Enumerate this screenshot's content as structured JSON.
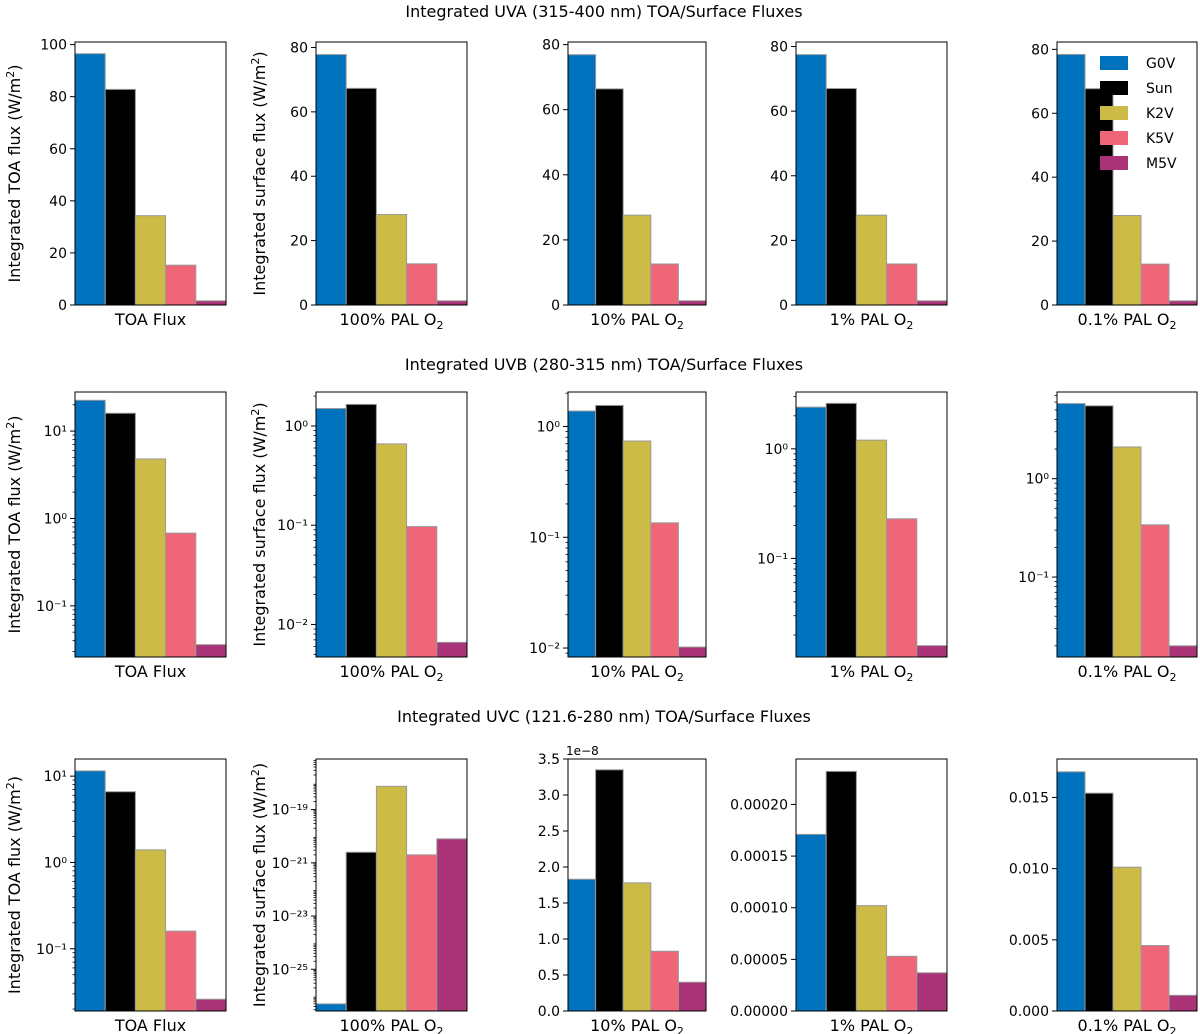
{
  "figure": {
    "row_titles": [
      "Integrated UVA (315-400 nm) TOA/Surface Fluxes",
      "Integrated UVB (280-315 nm) TOA/Surface Fluxes",
      "Integrated UVC (121.6-280 nm) TOA/Surface Fluxes"
    ]
  },
  "legend": {
    "placement": "top-right",
    "entries": [
      {
        "name": "G0V",
        "color": "#0072BD"
      },
      {
        "name": "Sun",
        "color": "#000000"
      },
      {
        "name": "K2V",
        "color": "#CDBB48"
      },
      {
        "name": "K5V",
        "color": "#EE6677"
      },
      {
        "name": "M5V",
        "color": "#AA3377"
      }
    ]
  },
  "chart_data": [
    {
      "type": "bar",
      "title": "Integrated UVA (315-400 nm) TOA/Surface Fluxes",
      "xlabel": "TOA Flux",
      "ylabel": "Integrated TOA flux (W/m²)",
      "categories": [
        "G0V",
        "Sun",
        "K2V",
        "K5V",
        "M5V"
      ],
      "values": [
        96.5,
        82.8,
        34.3,
        15.3,
        1.6
      ],
      "yscale": "linear",
      "ylim": [
        0,
        101
      ],
      "ticks": [
        0,
        20,
        40,
        60,
        80,
        100
      ],
      "tick_labels": [
        "0",
        "20",
        "40",
        "60",
        "80",
        "100"
      ]
    },
    {
      "type": "bar",
      "xlabel": "100% PAL O₂",
      "ylabel": "Integrated surface flux (W/m²)",
      "categories": [
        "G0V",
        "Sun",
        "K2V",
        "K5V",
        "M5V"
      ],
      "values": [
        77.8,
        67.3,
        28.1,
        12.8,
        1.3
      ],
      "yscale": "linear",
      "ylim": [
        0,
        81.7
      ],
      "ticks": [
        0,
        20,
        40,
        60,
        80
      ],
      "tick_labels": [
        "0",
        "20",
        "40",
        "60",
        "80"
      ]
    },
    {
      "type": "bar",
      "xlabel": "10% PAL O₂",
      "ylabel": "",
      "categories": [
        "G0V",
        "Sun",
        "K2V",
        "K5V",
        "M5V"
      ],
      "values": [
        76.9,
        66.4,
        27.6,
        12.6,
        1.3
      ],
      "yscale": "linear",
      "ylim": [
        0,
        80.8
      ],
      "ticks": [
        0,
        20,
        40,
        60,
        80
      ],
      "tick_labels": [
        "0",
        "20",
        "40",
        "60",
        "80"
      ]
    },
    {
      "type": "bar",
      "xlabel": "1% PAL O₂",
      "ylabel": "",
      "categories": [
        "G0V",
        "Sun",
        "K2V",
        "K5V",
        "M5V"
      ],
      "values": [
        77.5,
        67.0,
        27.8,
        12.7,
        1.3
      ],
      "yscale": "linear",
      "ylim": [
        0,
        81.4
      ],
      "ticks": [
        0,
        20,
        40,
        60,
        80
      ],
      "tick_labels": [
        "0",
        "20",
        "40",
        "60",
        "80"
      ]
    },
    {
      "type": "bar",
      "xlabel": "0.1% PAL O₂",
      "ylabel": "",
      "categories": [
        "G0V",
        "Sun",
        "K2V",
        "K5V",
        "M5V"
      ],
      "values": [
        78.4,
        67.7,
        28.0,
        12.8,
        1.3
      ],
      "yscale": "linear",
      "ylim": [
        0,
        82.3
      ],
      "ticks": [
        0,
        20,
        40,
        60,
        80
      ],
      "tick_labels": [
        "0",
        "20",
        "40",
        "60",
        "80"
      ]
    },
    {
      "type": "bar",
      "title": "Integrated UVB (280-315 nm) TOA/Surface Fluxes",
      "xlabel": "TOA Flux",
      "ylabel": "Integrated TOA flux (W/m²)",
      "categories": [
        "G0V",
        "Sun",
        "K2V",
        "K5V",
        "M5V"
      ],
      "values": [
        22.5,
        16.0,
        4.8,
        0.68,
        0.036
      ],
      "yscale": "log",
      "ylim": [
        0.026,
        28
      ],
      "ticks": [
        10,
        1,
        0.1
      ],
      "tick_labels": [
        "10¹",
        "10⁰",
        "10⁻¹"
      ]
    },
    {
      "type": "bar",
      "xlabel": "100% PAL O₂",
      "ylabel": "Integrated surface flux (W/m²)",
      "categories": [
        "G0V",
        "Sun",
        "K2V",
        "K5V",
        "M5V"
      ],
      "values": [
        1.5,
        1.65,
        0.66,
        0.097,
        0.0066
      ],
      "yscale": "log",
      "ylim": [
        0.0047,
        2.2
      ],
      "ticks": [
        1,
        0.1,
        0.01
      ],
      "tick_labels": [
        "10⁰",
        "10⁻¹",
        "10⁻²"
      ]
    },
    {
      "type": "bar",
      "xlabel": "10% PAL O₂",
      "ylabel": "",
      "categories": [
        "G0V",
        "Sun",
        "K2V",
        "K5V",
        "M5V"
      ],
      "values": [
        1.38,
        1.55,
        0.74,
        0.135,
        0.0102
      ],
      "yscale": "log",
      "ylim": [
        0.0083,
        2.05
      ],
      "ticks": [
        1,
        0.1,
        0.01
      ],
      "tick_labels": [
        "10⁰",
        "10⁻¹",
        "10⁻²"
      ]
    },
    {
      "type": "bar",
      "xlabel": "1% PAL O₂",
      "ylabel": "",
      "categories": [
        "G0V",
        "Sun",
        "K2V",
        "K5V",
        "M5V"
      ],
      "values": [
        2.4,
        2.6,
        1.2,
        0.23,
        0.016
      ],
      "yscale": "log",
      "ylim": [
        0.0126,
        3.3
      ],
      "ticks": [
        1,
        0.1
      ],
      "tick_labels": [
        "10⁰",
        "10⁻¹"
      ]
    },
    {
      "type": "bar",
      "xlabel": "0.1% PAL O₂",
      "ylabel": "",
      "categories": [
        "G0V",
        "Sun",
        "K2V",
        "K5V",
        "M5V"
      ],
      "values": [
        5.8,
        5.5,
        2.1,
        0.34,
        0.02
      ],
      "yscale": "log",
      "ylim": [
        0.0154,
        7.6
      ],
      "ticks": [
        1,
        0.1
      ],
      "tick_labels": [
        "10⁰",
        "10⁻¹"
      ]
    },
    {
      "type": "bar",
      "title": "Integrated UVC (121.6-280 nm) TOA/Surface Fluxes",
      "xlabel": "TOA Flux",
      "ylabel": "Integrated TOA flux (W/m²)",
      "categories": [
        "G0V",
        "Sun",
        "K2V",
        "K5V",
        "M5V"
      ],
      "values": [
        11.5,
        6.6,
        1.4,
        0.16,
        0.026
      ],
      "yscale": "log",
      "ylim": [
        0.019,
        15.8
      ],
      "ticks": [
        10,
        1,
        0.1
      ],
      "tick_labels": [
        "10¹",
        "10⁰",
        "10⁻¹"
      ]
    },
    {
      "type": "bar",
      "xlabel": "100% PAL O₂",
      "ylabel": "Integrated surface flux (W/m²)",
      "categories": [
        "G0V",
        "Sun",
        "K2V",
        "K5V",
        "M5V"
      ],
      "values": [
        5e-27,
        2.5e-21,
        7.5e-19,
        2e-21,
        8e-21
      ],
      "yscale": "log",
      "ylim": [
        2.7e-27,
        8e-18
      ],
      "ticks": [
        1e-19,
        1e-21,
        1e-23,
        1e-25
      ],
      "tick_labels": [
        "10⁻¹⁹",
        "10⁻²¹",
        "10⁻²³",
        "10⁻²⁵"
      ]
    },
    {
      "type": "bar",
      "xlabel": "10% PAL O₂",
      "ylabel": "",
      "categories": [
        "G0V",
        "Sun",
        "K2V",
        "K5V",
        "M5V"
      ],
      "values": [
        1.83,
        3.35,
        1.78,
        0.83,
        0.4
      ],
      "yscale": "linear",
      "ylim": [
        0,
        3.5
      ],
      "ticks": [
        0,
        0.5,
        1.0,
        1.5,
        2.0,
        2.5,
        3.0,
        3.5
      ],
      "tick_labels": [
        "0.0",
        "0.5",
        "1.0",
        "1.5",
        "2.0",
        "2.5",
        "3.0",
        "3.5"
      ],
      "offset_label": "1e−8"
    },
    {
      "type": "bar",
      "xlabel": "1% PAL O₂",
      "ylabel": "",
      "categories": [
        "G0V",
        "Sun",
        "K2V",
        "K5V",
        "M5V"
      ],
      "values": [
        0.000171,
        0.000232,
        0.000102,
        5.3e-05,
        3.7e-05
      ],
      "yscale": "linear",
      "ylim": [
        0,
        0.000244
      ],
      "ticks": [
        0,
        5e-05,
        0.0001,
        0.00015,
        0.0002
      ],
      "tick_labels": [
        "0.00000",
        "0.00005",
        "0.00010",
        "0.00015",
        "0.00020"
      ]
    },
    {
      "type": "bar",
      "xlabel": "0.1% PAL O₂",
      "ylabel": "",
      "categories": [
        "G0V",
        "Sun",
        "K2V",
        "K5V",
        "M5V"
      ],
      "values": [
        0.0168,
        0.0153,
        0.0101,
        0.0046,
        0.0011
      ],
      "yscale": "linear",
      "ylim": [
        0,
        0.0177
      ],
      "ticks": [
        0,
        0.005,
        0.01,
        0.015
      ],
      "tick_labels": [
        "0.000",
        "0.005",
        "0.010",
        "0.015"
      ]
    }
  ]
}
